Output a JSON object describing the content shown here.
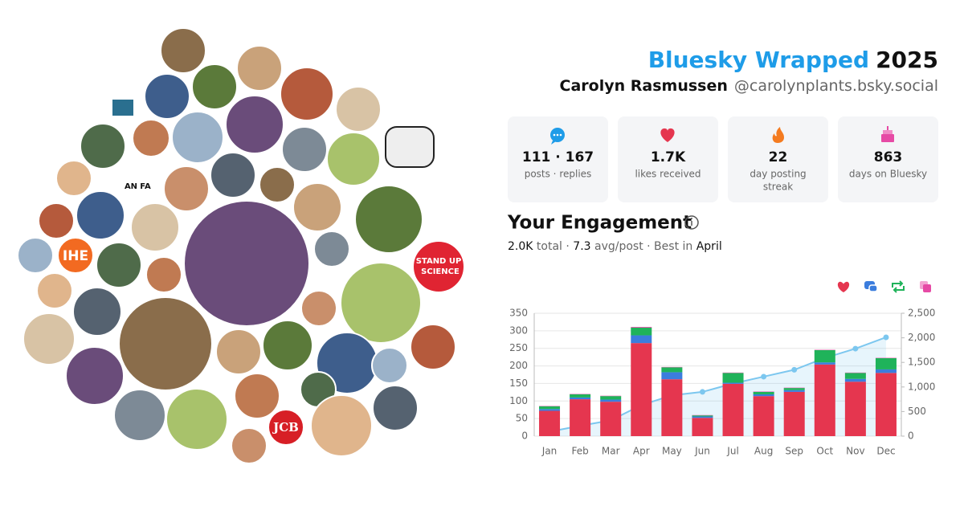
{
  "header": {
    "title_brand": "Bluesky Wrapped",
    "title_year": "2025",
    "name": "Carolyn Rasmussen",
    "handle": "@carolynplants.bsky.social"
  },
  "stats": [
    {
      "value": "111 · 167",
      "label": "posts · replies"
    },
    {
      "value": "1.7K",
      "label": "likes received"
    },
    {
      "value": "22",
      "label": "day posting",
      "label2": "streak"
    },
    {
      "value": "863",
      "label": "days on Bluesky"
    }
  ],
  "avatar_texts": {
    "ihe": "IHE",
    "stand_up": "STAND UP",
    "for_science": "SCIENCE",
    "jcb": "JCB",
    "antifa_1": "AN",
    "antifa_2": "FA"
  },
  "chart_data": {
    "type": "bar",
    "title": "Your Engagement",
    "subtitle_parts": [
      "2.0K",
      " total · ",
      "7.3",
      " avg/post · Best in ",
      "April"
    ],
    "categories": [
      "Jan",
      "Feb",
      "Mar",
      "Apr",
      "May",
      "Jun",
      "Jul",
      "Aug",
      "Sep",
      "Oct",
      "Nov",
      "Dec"
    ],
    "stacked": true,
    "series": [
      {
        "color": "#e5364f",
        "values": [
          72,
          105,
          98,
          265,
          162,
          52,
          149,
          114,
          126,
          204,
          155,
          180
        ]
      },
      {
        "color": "#3b7ddd",
        "values": [
          5,
          5,
          6,
          22,
          20,
          4,
          3,
          5,
          5,
          6,
          8,
          10
        ]
      },
      {
        "color": "#1fb35a",
        "values": [
          8,
          9,
          10,
          22,
          14,
          3,
          28,
          7,
          6,
          35,
          17,
          32
        ]
      },
      {
        "color": "#e64aa5",
        "values": [
          1,
          1,
          1,
          2,
          1,
          1,
          1,
          1,
          1,
          1,
          1,
          1
        ]
      },
      {
        "type": "line",
        "axis": "y2",
        "color": "#7cc7ef",
        "values": [
          90,
          210,
          320,
          630,
          830,
          900,
          1070,
          1210,
          1350,
          1590,
          1780,
          2010
        ]
      }
    ],
    "ylim": [
      0,
      350
    ],
    "yticks": [
      0,
      50,
      100,
      150,
      200,
      250,
      300,
      350
    ],
    "y2lim": [
      0,
      2500
    ],
    "y2ticks": [
      0,
      500,
      {
        "value": 1000,
        "label": "1,000"
      },
      {
        "value": 1500,
        "label": "1,500"
      },
      {
        "value": 2000,
        "label": "2,000"
      },
      {
        "value": 2500,
        "label": "2,500"
      }
    ],
    "grid": true
  }
}
